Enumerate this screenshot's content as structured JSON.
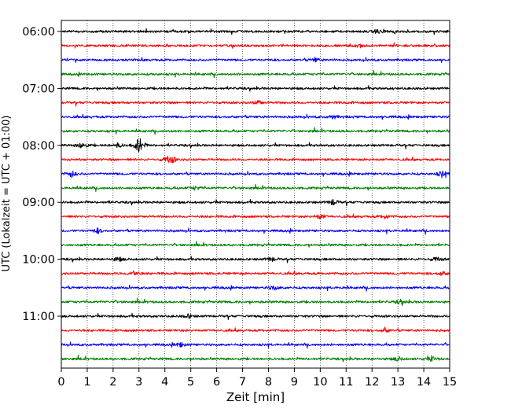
{
  "chart_data": {
    "type": "line",
    "xlabel": "Zeit  [min]",
    "ylabel": "UTC (Lokalzeit = UTC + 01:00)",
    "xlim": [
      0,
      15
    ],
    "x_ticks": [
      "0",
      "1",
      "2",
      "3",
      "4",
      "5",
      "6",
      "7",
      "8",
      "9",
      "10",
      "11",
      "12",
      "13",
      "14",
      "15"
    ],
    "y_ticks": [
      "06:00",
      "07:00",
      "08:00",
      "09:00",
      "10:00",
      "11:00"
    ],
    "y_tick_rows": [
      0,
      4,
      8,
      12,
      16,
      20
    ],
    "trace_interval_min": 15,
    "trace_count": 24,
    "trace_colors": [
      "#000000",
      "#ff0000",
      "#0000ff",
      "#008000"
    ],
    "vertical_grid": true,
    "grid_style": "dotted",
    "events": [
      {
        "row": 0,
        "minute": 12.2,
        "amp": 3
      },
      {
        "row": 1,
        "minute": 11.5,
        "amp": 2.5
      },
      {
        "row": 2,
        "minute": 9.8,
        "amp": 2.5
      },
      {
        "row": 5,
        "minute": 7.6,
        "amp": 3
      },
      {
        "row": 6,
        "minute": 10.5,
        "amp": 2.5
      },
      {
        "row": 8,
        "minute": 0.8,
        "amp": 5
      },
      {
        "row": 8,
        "minute": 3.0,
        "amp": 12
      },
      {
        "row": 8,
        "minute": 2.2,
        "amp": 3
      },
      {
        "row": 9,
        "minute": 4.1,
        "amp": 4
      },
      {
        "row": 9,
        "minute": 4.3,
        "amp": 3
      },
      {
        "row": 10,
        "minute": 0.4,
        "amp": 4
      },
      {
        "row": 10,
        "minute": 14.7,
        "amp": 4
      },
      {
        "row": 11,
        "minute": 5.2,
        "amp": 2.5
      },
      {
        "row": 12,
        "minute": 10.5,
        "amp": 4
      },
      {
        "row": 13,
        "minute": 10.0,
        "amp": 3.5
      },
      {
        "row": 13,
        "minute": 12.5,
        "amp": 2.5
      },
      {
        "row": 14,
        "minute": 1.4,
        "amp": 3
      },
      {
        "row": 16,
        "minute": 2.2,
        "amp": 3
      },
      {
        "row": 16,
        "minute": 8.1,
        "amp": 3
      },
      {
        "row": 16,
        "minute": 14.5,
        "amp": 3
      },
      {
        "row": 17,
        "minute": 2.8,
        "amp": 4
      },
      {
        "row": 17,
        "minute": 14.7,
        "amp": 3
      },
      {
        "row": 18,
        "minute": 8.2,
        "amp": 3
      },
      {
        "row": 19,
        "minute": 13.1,
        "amp": 2.5
      },
      {
        "row": 20,
        "minute": 4.9,
        "amp": 2.5
      },
      {
        "row": 21,
        "minute": 12.5,
        "amp": 3
      },
      {
        "row": 22,
        "minute": 4.6,
        "amp": 3
      },
      {
        "row": 23,
        "minute": 13.0,
        "amp": 3
      },
      {
        "row": 23,
        "minute": 14.3,
        "amp": 3
      }
    ]
  }
}
